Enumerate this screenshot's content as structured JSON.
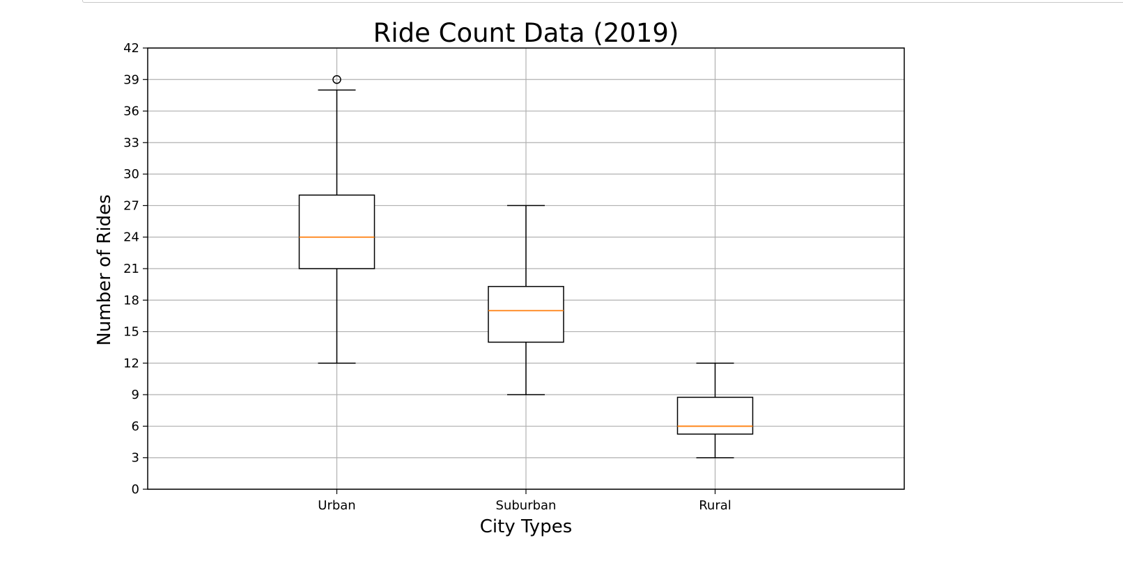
{
  "chart_data": {
    "type": "box",
    "title": "Ride Count Data (2019)",
    "xlabel": "City Types",
    "ylabel": "Number of Rides",
    "ylim": [
      0,
      42
    ],
    "yticks": [
      0,
      3,
      6,
      9,
      12,
      15,
      18,
      21,
      24,
      27,
      30,
      33,
      36,
      39,
      42
    ],
    "grid": true,
    "categories": [
      "Urban",
      "Suburban",
      "Rural"
    ],
    "boxes": [
      {
        "category": "Urban",
        "whisker_low": 12,
        "q1": 21,
        "median": 24,
        "q3": 28,
        "whisker_high": 38,
        "outliers": [
          39
        ]
      },
      {
        "category": "Suburban",
        "whisker_low": 9,
        "q1": 14,
        "median": 17,
        "q3": 19.3,
        "whisker_high": 27,
        "outliers": []
      },
      {
        "category": "Rural",
        "whisker_low": 3,
        "q1": 5.25,
        "median": 6,
        "q3": 8.75,
        "whisker_high": 12,
        "outliers": []
      }
    ],
    "colors": {
      "box": "#000000",
      "median": "#ff7f0e",
      "grid": "#b0b0b0",
      "outlier": "#000000"
    }
  }
}
